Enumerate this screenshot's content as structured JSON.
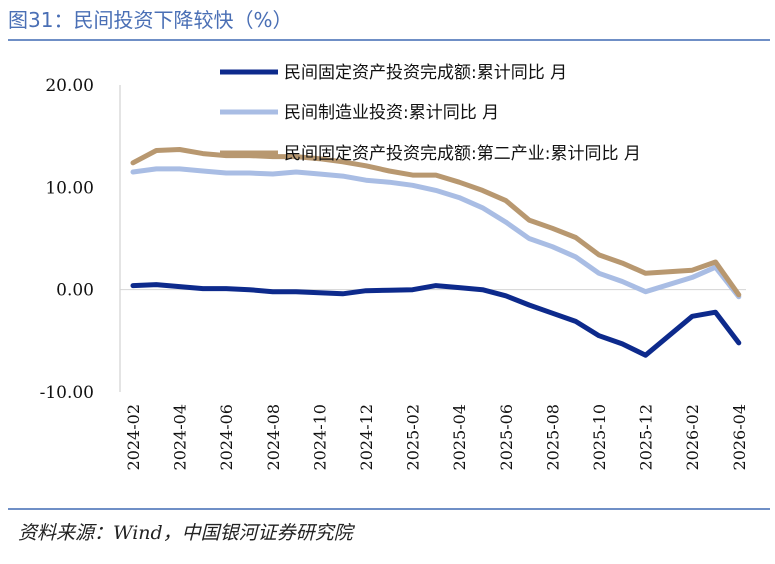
{
  "figure": {
    "title": "图31：民间投资下降较快（%）",
    "source": "资料来源：Wind，中国银河证券研究院"
  },
  "colors": {
    "series1": "#0d2a8c",
    "series2": "#a9bde4",
    "series3": "#b89870",
    "rule": "#6f8fc6",
    "title": "#4a6fb5"
  },
  "chart_data": {
    "type": "line",
    "title": "",
    "xlabel": "",
    "ylabel": "",
    "ylim": [
      -10,
      20
    ],
    "yticks": [
      -10,
      0,
      10,
      20
    ],
    "ytick_labels": [
      "-10.00",
      "0.00",
      "10.00",
      "20.00"
    ],
    "grid": false,
    "legend_position": "top-right",
    "x": [
      "2024-02",
      "2024-03",
      "2024-04",
      "2024-05",
      "2024-06",
      "2024-07",
      "2024-08",
      "2024-09",
      "2024-10",
      "2024-11",
      "2024-12",
      "2025-01",
      "2025-02",
      "2025-03",
      "2025-04",
      "2025-05",
      "2025-06",
      "2025-07",
      "2025-08",
      "2025-09",
      "2025-10",
      "2025-11",
      "2025-12",
      "2026-01",
      "2026-02",
      "2026-03",
      "2026-04"
    ],
    "xtick_labels": [
      "2024-02",
      "2024-04",
      "2024-06",
      "2024-08",
      "2024-10",
      "2024-12",
      "2025-02",
      "2025-04",
      "2025-06",
      "2025-08",
      "2025-10",
      "2025-12",
      "2026-02",
      "2026-04"
    ],
    "series": [
      {
        "name": "民间固定资产投资完成额:累计同比 月",
        "color_key": "series1",
        "values": [
          0.4,
          0.5,
          0.3,
          0.1,
          0.1,
          0.0,
          -0.2,
          -0.2,
          -0.3,
          -0.4,
          -0.1,
          -0.05,
          0.0,
          0.4,
          0.2,
          0.0,
          -0.6,
          -1.5,
          -2.3,
          -3.1,
          -4.5,
          -5.3,
          -6.4,
          null,
          -2.6,
          -2.2,
          -5.2
        ]
      },
      {
        "name": "民间制造业投资:累计同比 月",
        "color_key": "series2",
        "values": [
          11.5,
          11.8,
          11.8,
          11.6,
          11.4,
          11.4,
          11.3,
          11.5,
          11.3,
          11.1,
          10.7,
          10.5,
          10.2,
          9.7,
          9.0,
          8.0,
          6.6,
          5.0,
          4.2,
          3.2,
          1.6,
          0.8,
          -0.2,
          null,
          1.2,
          2.2,
          -0.7
        ]
      },
      {
        "name": "民间固定资产投资完成额:第二产业:累计同比 月",
        "color_key": "series3",
        "values": [
          12.4,
          13.6,
          13.7,
          13.3,
          13.1,
          13.1,
          13.0,
          13.0,
          12.8,
          12.5,
          12.1,
          11.6,
          11.2,
          11.2,
          10.5,
          9.7,
          8.7,
          6.8,
          6.0,
          5.1,
          3.4,
          2.6,
          1.6,
          null,
          1.9,
          2.7,
          -0.5
        ]
      }
    ]
  }
}
